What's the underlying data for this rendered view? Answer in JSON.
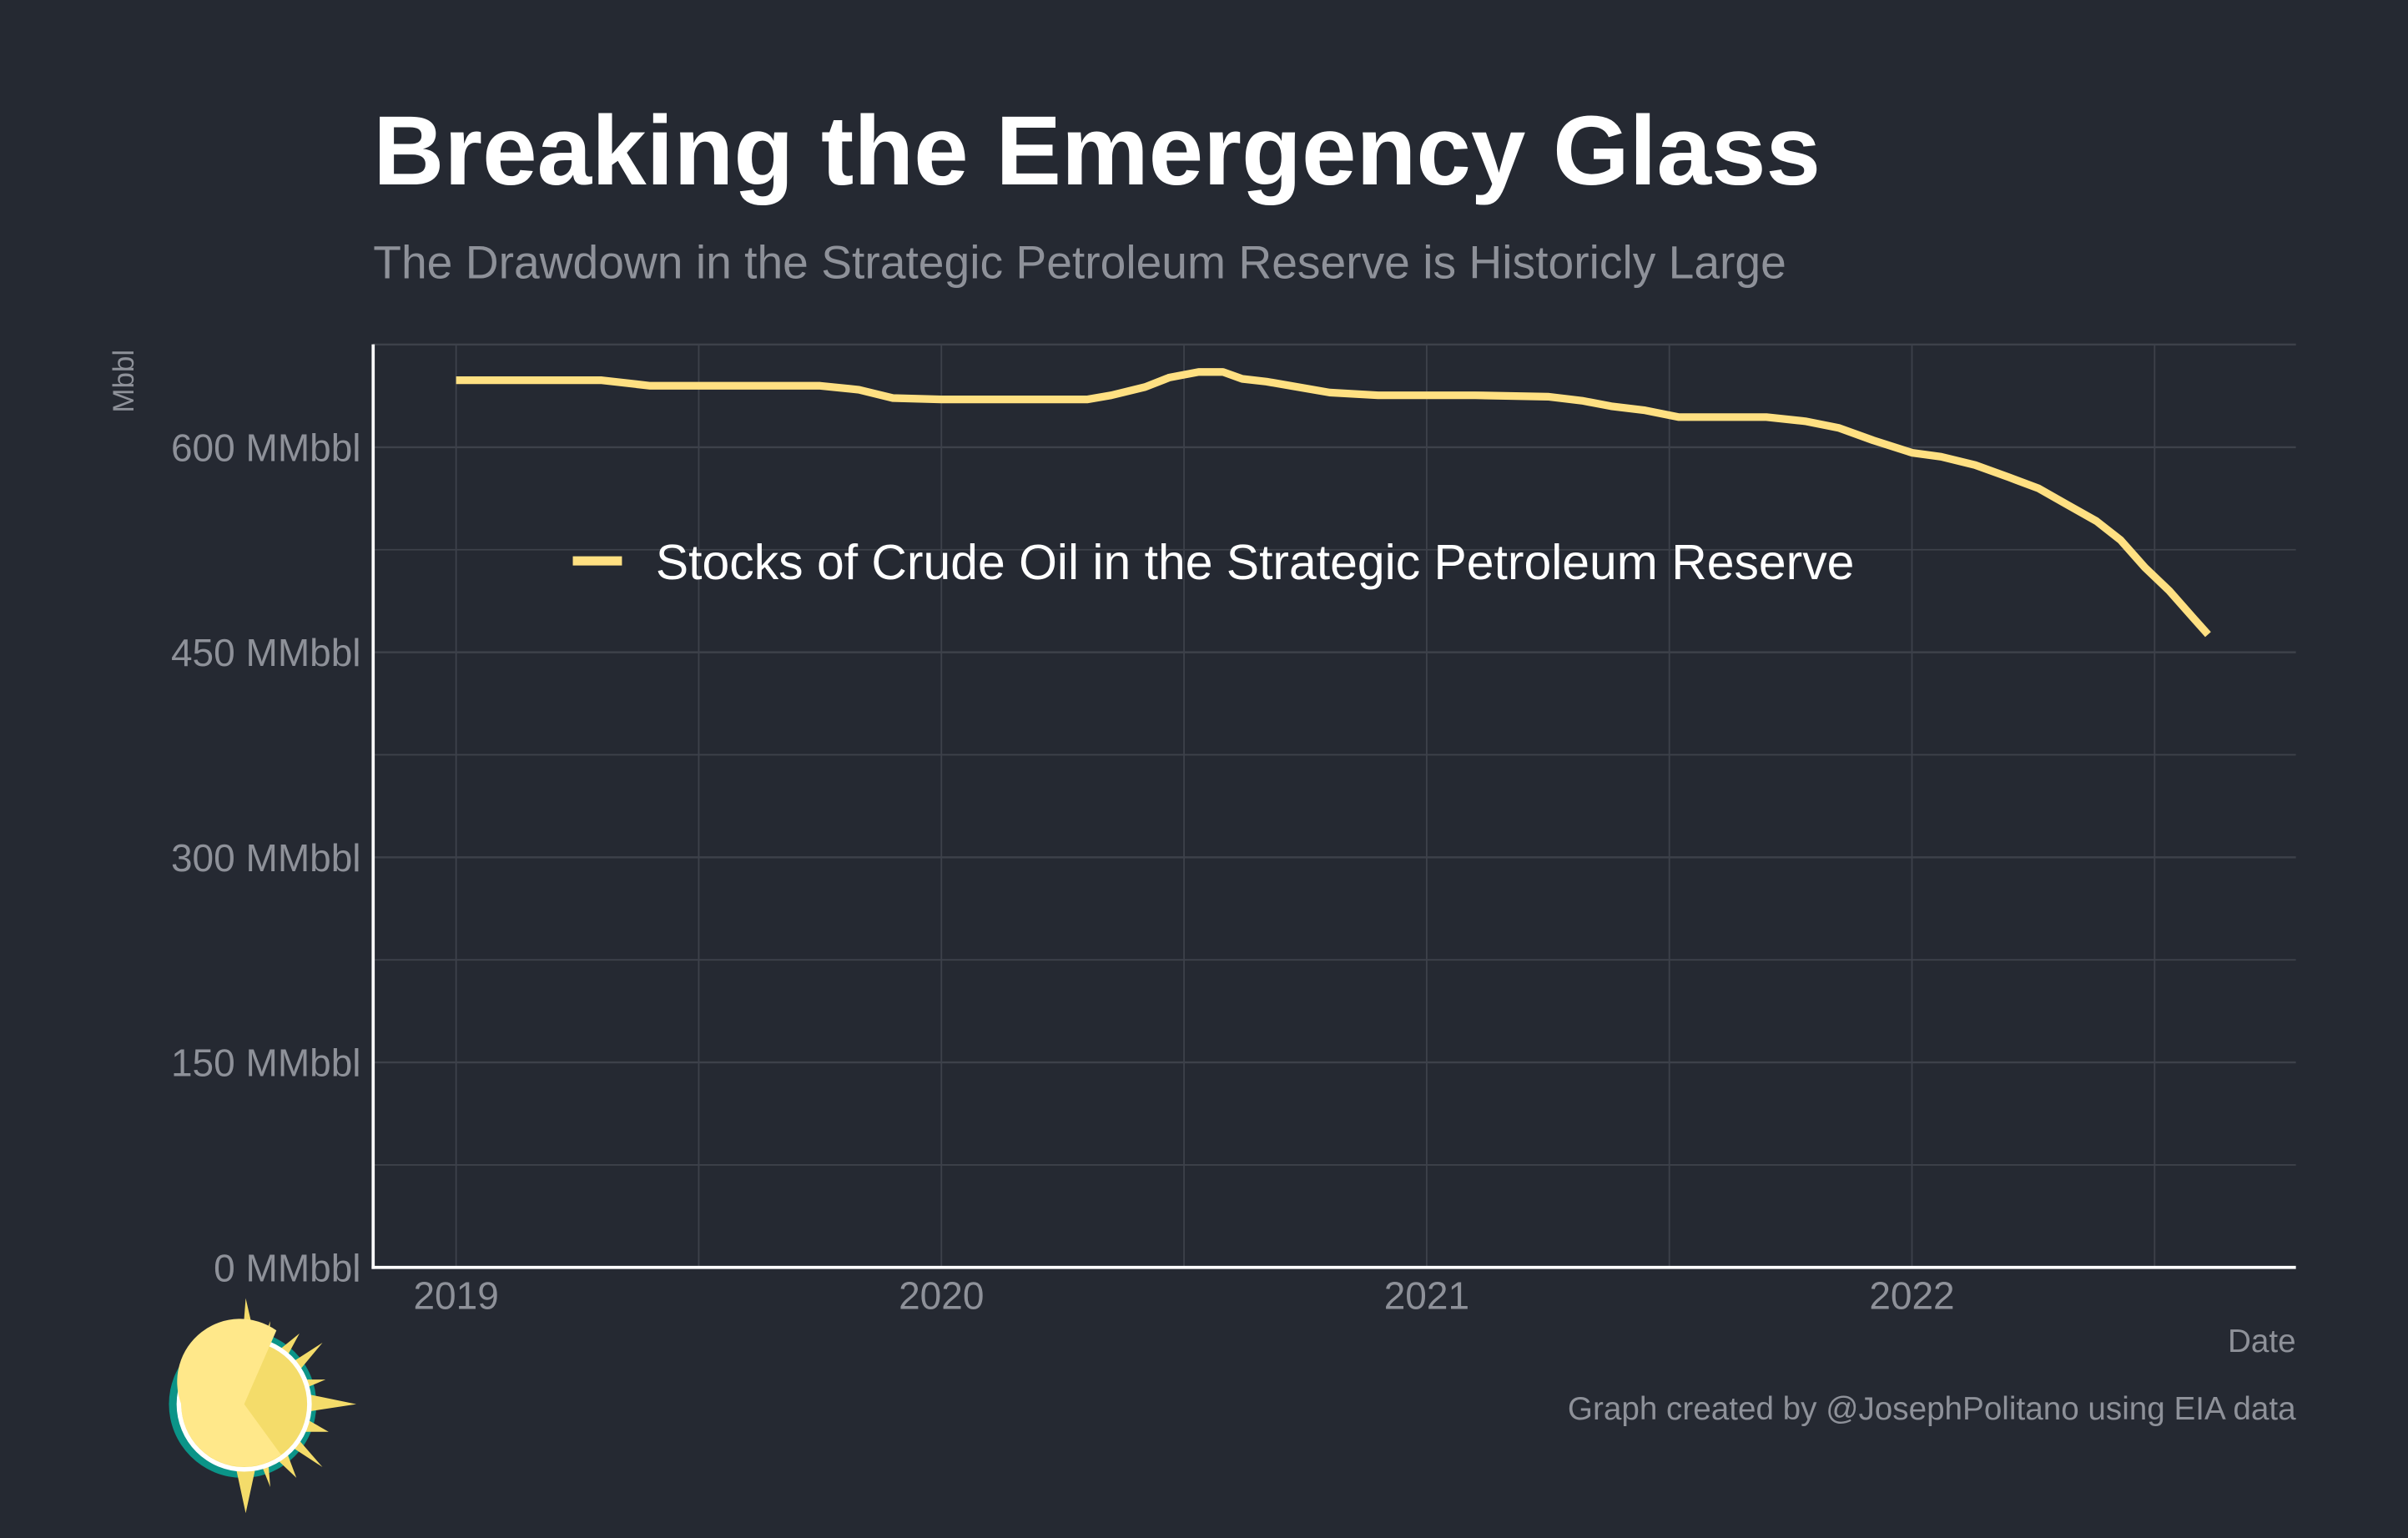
{
  "chart_data": {
    "type": "line",
    "title": "Breaking the Emergency Glass",
    "subtitle": "The Drawdown in the Strategic Petroleum Reserve is Historicly Large",
    "xlabel": "Date",
    "ylabel": "Mbbl",
    "caption": "Graph created by @JosephPolitano using EIA data",
    "xlim": [
      2018.83,
      2023.78
    ],
    "ylim": [
      0,
      675
    ],
    "x_ticks": [
      {
        "value": 2019,
        "label": "2019"
      },
      {
        "value": 2020,
        "label": "2020"
      },
      {
        "value": 2021,
        "label": "2021"
      },
      {
        "value": 2022,
        "label": "2022"
      }
    ],
    "y_ticks": [
      {
        "value": 0,
        "label": "0 MMbbl"
      },
      {
        "value": 150,
        "label": "150 MMbbl"
      },
      {
        "value": 300,
        "label": "300 MMbbl"
      },
      {
        "value": 450,
        "label": "450 MMbbl"
      },
      {
        "value": 600,
        "label": "600 MMbbl"
      }
    ],
    "grid": true,
    "legend_position": "top-left inside",
    "series": [
      {
        "name": "Stocks of Crude Oil in the Strategic Petroleum Reserve",
        "color": "#FFE082",
        "x": [
          2019.0,
          2019.1,
          2019.2,
          2019.3,
          2019.35,
          2019.4,
          2019.5,
          2019.6,
          2019.7,
          2019.75,
          2019.83,
          2019.9,
          2020.0,
          2020.1,
          2020.2,
          2020.3,
          2020.35,
          2020.42,
          2020.47,
          2020.53,
          2020.58,
          2020.62,
          2020.67,
          2020.72,
          2020.8,
          2020.9,
          2021.0,
          2021.1,
          2021.25,
          2021.32,
          2021.38,
          2021.45,
          2021.52,
          2021.6,
          2021.7,
          2021.78,
          2021.85,
          2021.92,
          2022.0,
          2022.06,
          2022.13,
          2022.2,
          2022.26,
          2022.32,
          2022.38,
          2022.43,
          2022.48,
          2022.53,
          2022.58,
          2022.61
        ],
        "values": [
          649,
          649,
          649,
          649,
          647,
          645,
          645,
          645,
          645,
          645,
          642,
          636,
          635,
          635,
          635,
          635,
          638,
          644,
          651,
          655,
          655,
          650,
          648,
          645,
          640,
          638,
          638,
          638,
          637,
          634,
          630,
          627,
          622,
          622,
          622,
          619,
          614,
          605,
          596,
          593,
          587,
          578,
          570,
          558,
          546,
          532,
          512,
          495,
          475,
          463
        ]
      }
    ]
  }
}
